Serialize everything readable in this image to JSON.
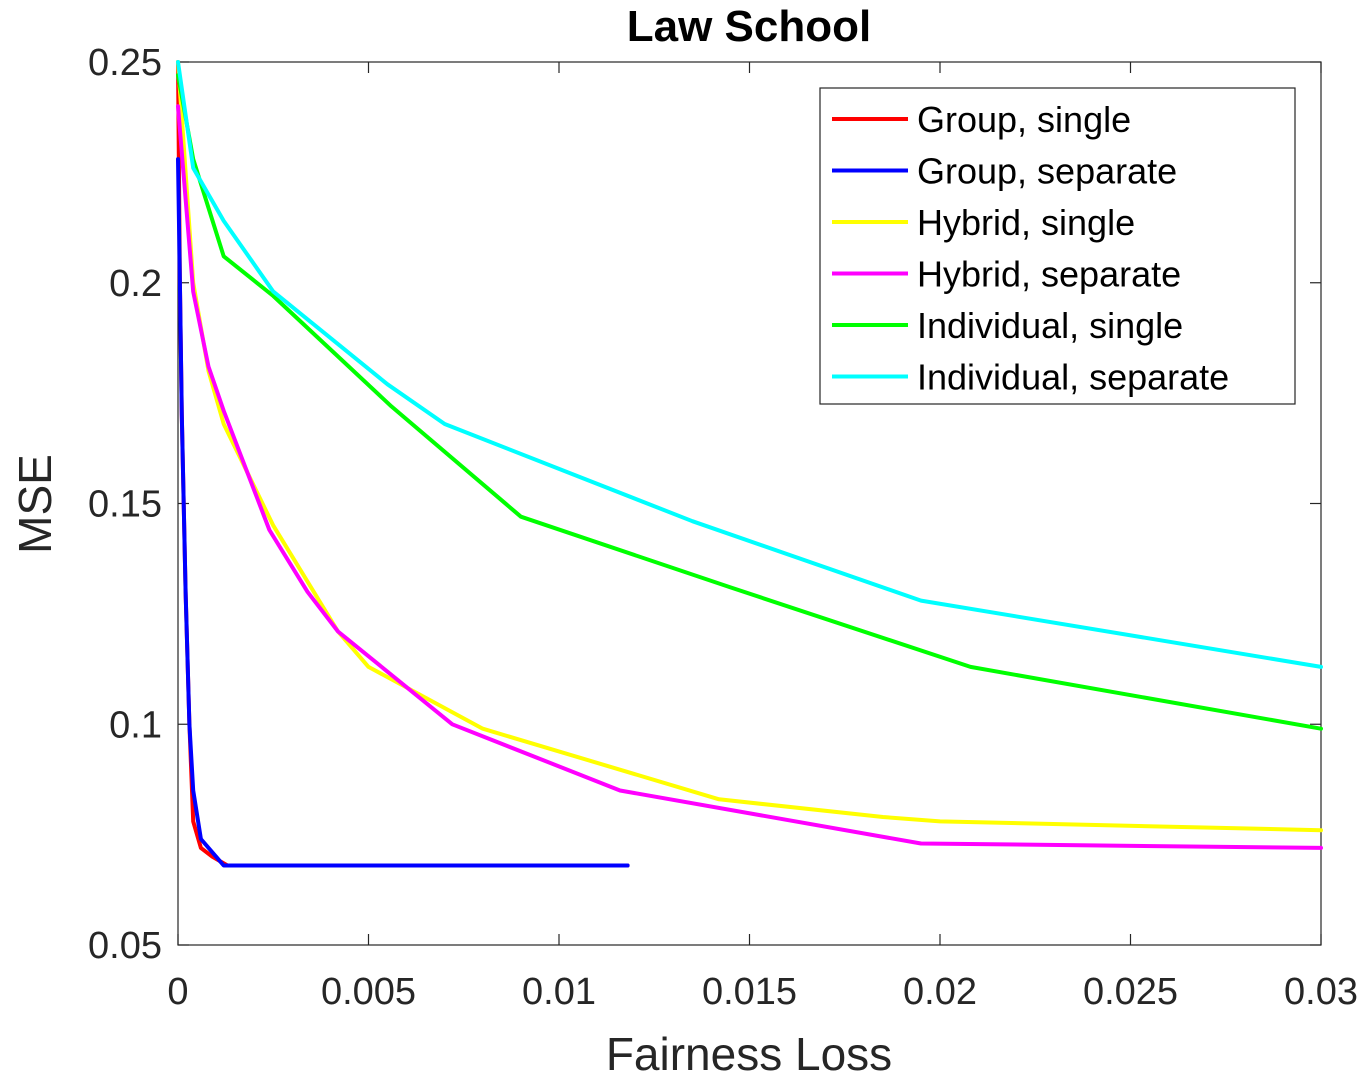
{
  "chart_data": {
    "type": "line",
    "title": "Law School",
    "xlabel": "Fairness Loss",
    "ylabel": "MSE",
    "xlim": [
      0,
      0.03
    ],
    "ylim": [
      0.05,
      0.25
    ],
    "x_ticks": [
      0,
      0.005,
      0.01,
      0.015,
      0.02,
      0.025,
      0.03
    ],
    "x_tick_labels": [
      "0",
      "0.005",
      "0.01",
      "0.015",
      "0.02",
      "0.025",
      "0.03"
    ],
    "y_ticks": [
      0.05,
      0.1,
      0.15,
      0.2,
      0.25
    ],
    "y_tick_labels": [
      "0.05",
      "0.1",
      "0.15",
      "0.2",
      "0.25"
    ],
    "grid": false,
    "legend_position": "top-right",
    "series": [
      {
        "name": "Group, single",
        "color": "#ff0000",
        "x": [
          0,
          5e-05,
          0.0001,
          0.0002,
          0.0003,
          0.0004,
          0.0006,
          0.0009,
          0.0013,
          0.003,
          0.0118
        ],
        "y": [
          0.25,
          0.2,
          0.17,
          0.13,
          0.1,
          0.078,
          0.072,
          0.07,
          0.068,
          0.068,
          0.068
        ]
      },
      {
        "name": "Group, separate",
        "color": "#0000ff",
        "x": [
          0,
          5e-05,
          0.0001,
          0.0002,
          0.0003,
          0.0004,
          0.0006,
          0.001,
          0.0012,
          0.003,
          0.0118
        ],
        "y": [
          0.228,
          0.2,
          0.17,
          0.13,
          0.1,
          0.085,
          0.074,
          0.07,
          0.068,
          0.068,
          0.068
        ]
      },
      {
        "name": "Hybrid, single",
        "color": "#ffff00",
        "x": [
          0,
          0.0004,
          0.0008,
          0.0012,
          0.0025,
          0.0042,
          0.005,
          0.008,
          0.0142,
          0.0185,
          0.02,
          0.03
        ],
        "y": [
          0.25,
          0.2,
          0.18,
          0.168,
          0.145,
          0.121,
          0.113,
          0.099,
          0.083,
          0.079,
          0.078,
          0.076
        ]
      },
      {
        "name": "Hybrid, separate",
        "color": "#ff00ff",
        "x": [
          0,
          0.0004,
          0.0008,
          0.0012,
          0.0024,
          0.0034,
          0.0042,
          0.0072,
          0.0116,
          0.0195,
          0.03
        ],
        "y": [
          0.24,
          0.198,
          0.181,
          0.171,
          0.144,
          0.13,
          0.121,
          0.1,
          0.085,
          0.073,
          0.072
        ]
      },
      {
        "name": "Individual, single",
        "color": "#00ff00",
        "x": [
          0,
          0.0004,
          0.0012,
          0.0025,
          0.0056,
          0.009,
          0.0145,
          0.0208,
          0.03
        ],
        "y": [
          0.247,
          0.228,
          0.206,
          0.197,
          0.172,
          0.147,
          0.131,
          0.113,
          0.099
        ]
      },
      {
        "name": "Individual, separate",
        "color": "#00ffff",
        "x": [
          0,
          0.0004,
          0.0012,
          0.0025,
          0.0055,
          0.007,
          0.0135,
          0.0195,
          0.03
        ],
        "y": [
          0.25,
          0.226,
          0.214,
          0.198,
          0.177,
          0.168,
          0.146,
          0.128,
          0.113
        ]
      }
    ]
  }
}
